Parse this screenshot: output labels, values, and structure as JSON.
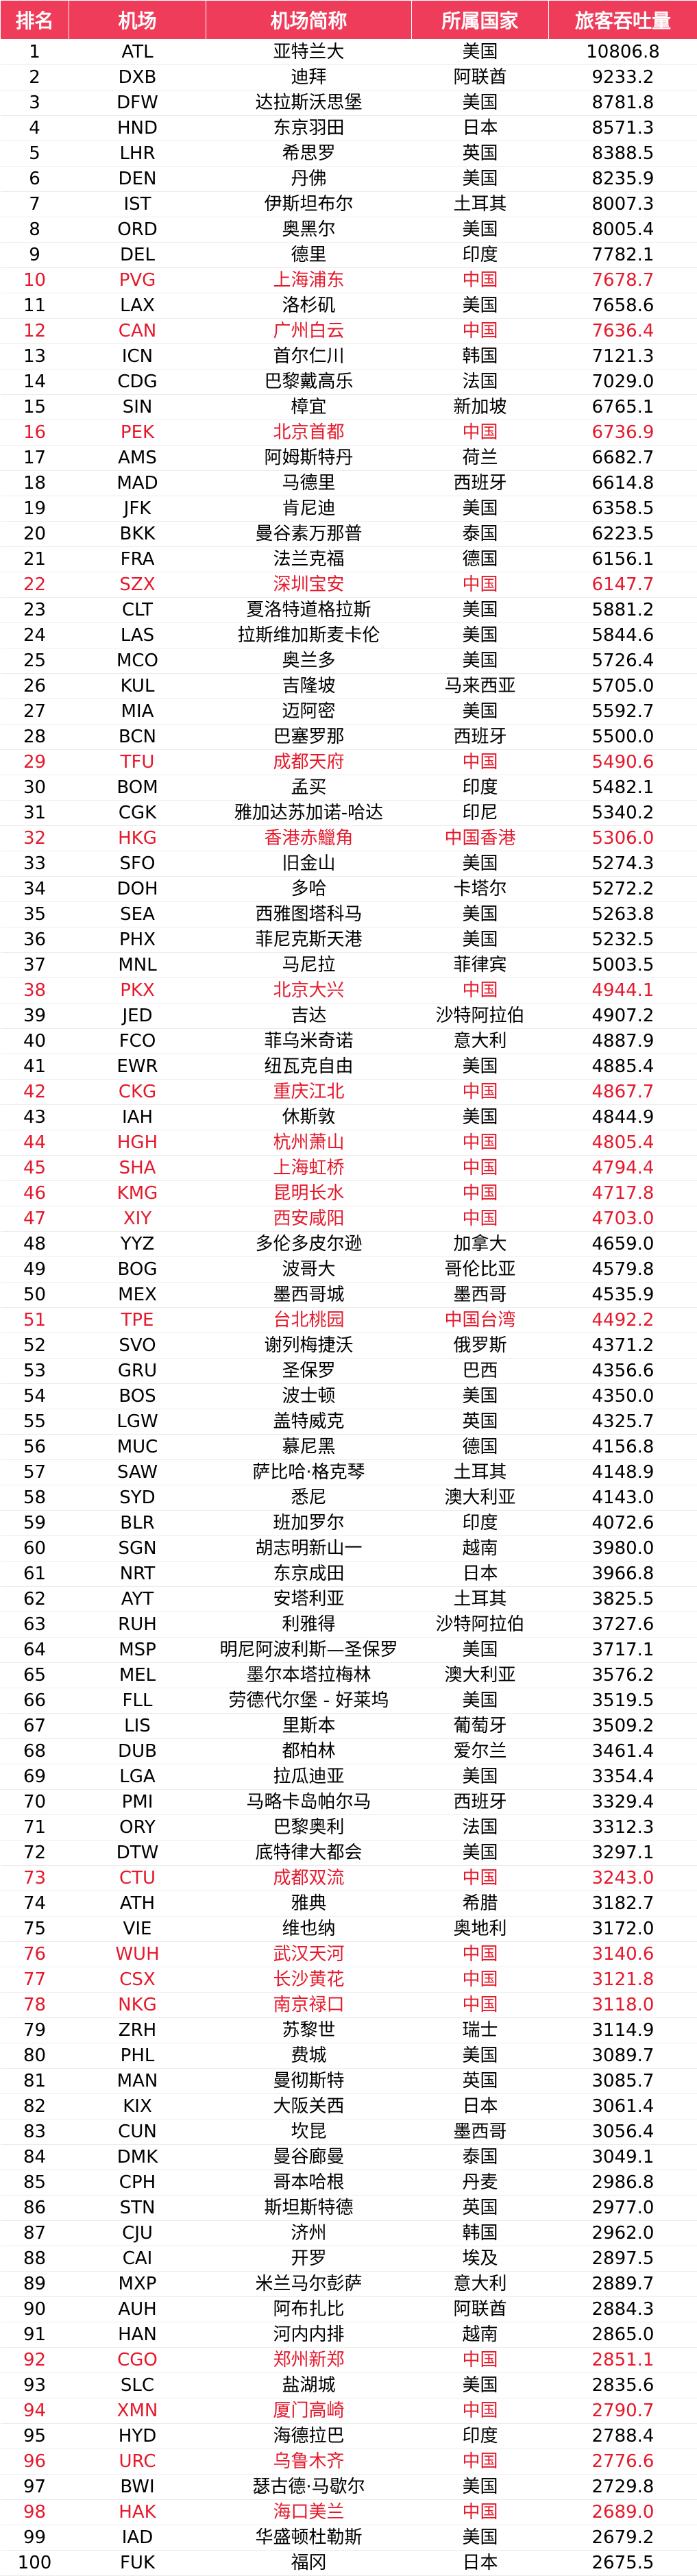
{
  "headers": [
    "排名",
    "机场",
    "机场简称",
    "所属国家",
    "旅客吞吐量"
  ],
  "highlight_color": "#e5192b",
  "header_color": "#ee3c5a",
  "rows": [
    {
      "rank": "1",
      "code": "ATL",
      "name": "亚特兰大",
      "country": "美国",
      "traffic": "10806.8",
      "hl": false
    },
    {
      "rank": "2",
      "code": "DXB",
      "name": "迪拜",
      "country": "阿联酋",
      "traffic": "9233.2",
      "hl": false
    },
    {
      "rank": "3",
      "code": "DFW",
      "name": "达拉斯沃思堡",
      "country": "美国",
      "traffic": "8781.8",
      "hl": false
    },
    {
      "rank": "4",
      "code": "HND",
      "name": "东京羽田",
      "country": "日本",
      "traffic": "8571.3",
      "hl": false
    },
    {
      "rank": "5",
      "code": "LHR",
      "name": "希思罗",
      "country": "英国",
      "traffic": "8388.5",
      "hl": false
    },
    {
      "rank": "6",
      "code": "DEN",
      "name": "丹佛",
      "country": "美国",
      "traffic": "8235.9",
      "hl": false
    },
    {
      "rank": "7",
      "code": "IST",
      "name": "伊斯坦布尔",
      "country": "土耳其",
      "traffic": "8007.3",
      "hl": false
    },
    {
      "rank": "8",
      "code": "ORD",
      "name": "奥黑尔",
      "country": "美国",
      "traffic": "8005.4",
      "hl": false
    },
    {
      "rank": "9",
      "code": "DEL",
      "name": "德里",
      "country": "印度",
      "traffic": "7782.1",
      "hl": false
    },
    {
      "rank": "10",
      "code": "PVG",
      "name": "上海浦东",
      "country": "中国",
      "traffic": "7678.7",
      "hl": true
    },
    {
      "rank": "11",
      "code": "LAX",
      "name": "洛杉矶",
      "country": "美国",
      "traffic": "7658.6",
      "hl": false
    },
    {
      "rank": "12",
      "code": "CAN",
      "name": "广州白云",
      "country": "中国",
      "traffic": "7636.4",
      "hl": true
    },
    {
      "rank": "13",
      "code": "ICN",
      "name": "首尔仁川",
      "country": "韩国",
      "traffic": "7121.3",
      "hl": false
    },
    {
      "rank": "14",
      "code": "CDG",
      "name": "巴黎戴高乐",
      "country": "法国",
      "traffic": "7029.0",
      "hl": false
    },
    {
      "rank": "15",
      "code": "SIN",
      "name": "樟宜",
      "country": "新加坡",
      "traffic": "6765.1",
      "hl": false
    },
    {
      "rank": "16",
      "code": "PEK",
      "name": "北京首都",
      "country": "中国",
      "traffic": "6736.9",
      "hl": true
    },
    {
      "rank": "17",
      "code": "AMS",
      "name": "阿姆斯特丹",
      "country": "荷兰",
      "traffic": "6682.7",
      "hl": false
    },
    {
      "rank": "18",
      "code": "MAD",
      "name": "马德里",
      "country": "西班牙",
      "traffic": "6614.8",
      "hl": false
    },
    {
      "rank": "19",
      "code": "JFK",
      "name": "肯尼迪",
      "country": "美国",
      "traffic": "6358.5",
      "hl": false
    },
    {
      "rank": "20",
      "code": "BKK",
      "name": "曼谷素万那普",
      "country": "泰国",
      "traffic": "6223.5",
      "hl": false
    },
    {
      "rank": "21",
      "code": "FRA",
      "name": "法兰克福",
      "country": "德国",
      "traffic": "6156.1",
      "hl": false
    },
    {
      "rank": "22",
      "code": "SZX",
      "name": "深圳宝安",
      "country": "中国",
      "traffic": "6147.7",
      "hl": true
    },
    {
      "rank": "23",
      "code": "CLT",
      "name": "夏洛特道格拉斯",
      "country": "美国",
      "traffic": "5881.2",
      "hl": false
    },
    {
      "rank": "24",
      "code": "LAS",
      "name": "拉斯维加斯麦卡伦",
      "country": "美国",
      "traffic": "5844.6",
      "hl": false
    },
    {
      "rank": "25",
      "code": "MCO",
      "name": "奥兰多",
      "country": "美国",
      "traffic": "5726.4",
      "hl": false
    },
    {
      "rank": "26",
      "code": "KUL",
      "name": "吉隆坡",
      "country": "马来西亚",
      "traffic": "5705.0",
      "hl": false
    },
    {
      "rank": "27",
      "code": "MIA",
      "name": "迈阿密",
      "country": "美国",
      "traffic": "5592.7",
      "hl": false
    },
    {
      "rank": "28",
      "code": "BCN",
      "name": "巴塞罗那",
      "country": "西班牙",
      "traffic": "5500.0",
      "hl": false
    },
    {
      "rank": "29",
      "code": "TFU",
      "name": "成都天府",
      "country": "中国",
      "traffic": "5490.6",
      "hl": true
    },
    {
      "rank": "30",
      "code": "BOM",
      "name": "孟买",
      "country": "印度",
      "traffic": "5482.1",
      "hl": false
    },
    {
      "rank": "31",
      "code": "CGK",
      "name": "雅加达苏加诺-哈达",
      "country": "印尼",
      "traffic": "5340.2",
      "hl": false
    },
    {
      "rank": "32",
      "code": "HKG",
      "name": "香港赤鱲角",
      "country": "中国香港",
      "traffic": "5306.0",
      "hl": true
    },
    {
      "rank": "33",
      "code": "SFO",
      "name": "旧金山",
      "country": "美国",
      "traffic": "5274.3",
      "hl": false
    },
    {
      "rank": "34",
      "code": "DOH",
      "name": "多哈",
      "country": "卡塔尔",
      "traffic": "5272.2",
      "hl": false
    },
    {
      "rank": "35",
      "code": "SEA",
      "name": "西雅图塔科马",
      "country": "美国",
      "traffic": "5263.8",
      "hl": false
    },
    {
      "rank": "36",
      "code": "PHX",
      "name": "菲尼克斯天港",
      "country": "美国",
      "traffic": "5232.5",
      "hl": false
    },
    {
      "rank": "37",
      "code": "MNL",
      "name": "马尼拉",
      "country": "菲律宾",
      "traffic": "5003.5",
      "hl": false
    },
    {
      "rank": "38",
      "code": "PKX",
      "name": "北京大兴",
      "country": "中国",
      "traffic": "4944.1",
      "hl": true
    },
    {
      "rank": "39",
      "code": "JED",
      "name": "吉达",
      "country": "沙特阿拉伯",
      "traffic": "4907.2",
      "hl": false
    },
    {
      "rank": "40",
      "code": "FCO",
      "name": "菲乌米奇诺",
      "country": "意大利",
      "traffic": "4887.9",
      "hl": false
    },
    {
      "rank": "41",
      "code": "EWR",
      "name": "纽瓦克自由",
      "country": "美国",
      "traffic": "4885.4",
      "hl": false
    },
    {
      "rank": "42",
      "code": "CKG",
      "name": "重庆江北",
      "country": "中国",
      "traffic": "4867.7",
      "hl": true
    },
    {
      "rank": "43",
      "code": "IAH",
      "name": "休斯敦",
      "country": "美国",
      "traffic": "4844.9",
      "hl": false
    },
    {
      "rank": "44",
      "code": "HGH",
      "name": "杭州萧山",
      "country": "中国",
      "traffic": "4805.4",
      "hl": true
    },
    {
      "rank": "45",
      "code": "SHA",
      "name": "上海虹桥",
      "country": "中国",
      "traffic": "4794.4",
      "hl": true
    },
    {
      "rank": "46",
      "code": "KMG",
      "name": "昆明长水",
      "country": "中国",
      "traffic": "4717.8",
      "hl": true
    },
    {
      "rank": "47",
      "code": "XIY",
      "name": "西安咸阳",
      "country": "中国",
      "traffic": "4703.0",
      "hl": true
    },
    {
      "rank": "48",
      "code": "YYZ",
      "name": "多伦多皮尔逊",
      "country": "加拿大",
      "traffic": "4659.0",
      "hl": false
    },
    {
      "rank": "49",
      "code": "BOG",
      "name": "波哥大",
      "country": "哥伦比亚",
      "traffic": "4579.8",
      "hl": false
    },
    {
      "rank": "50",
      "code": "MEX",
      "name": "墨西哥城",
      "country": "墨西哥",
      "traffic": "4535.9",
      "hl": false
    },
    {
      "rank": "51",
      "code": "TPE",
      "name": "台北桃园",
      "country": "中国台湾",
      "traffic": "4492.2",
      "hl": true
    },
    {
      "rank": "52",
      "code": "SVO",
      "name": "谢列梅捷沃",
      "country": "俄罗斯",
      "traffic": "4371.2",
      "hl": false
    },
    {
      "rank": "53",
      "code": "GRU",
      "name": "圣保罗",
      "country": "巴西",
      "traffic": "4356.6",
      "hl": false
    },
    {
      "rank": "54",
      "code": "BOS",
      "name": "波士顿",
      "country": "美国",
      "traffic": "4350.0",
      "hl": false
    },
    {
      "rank": "55",
      "code": "LGW",
      "name": "盖特威克",
      "country": "英国",
      "traffic": "4325.7",
      "hl": false
    },
    {
      "rank": "56",
      "code": "MUC",
      "name": "慕尼黑",
      "country": "德国",
      "traffic": "4156.8",
      "hl": false
    },
    {
      "rank": "57",
      "code": "SAW",
      "name": "萨比哈·格克琴",
      "country": "土耳其",
      "traffic": "4148.9",
      "hl": false
    },
    {
      "rank": "58",
      "code": "SYD",
      "name": "悉尼",
      "country": "澳大利亚",
      "traffic": "4143.0",
      "hl": false
    },
    {
      "rank": "59",
      "code": "BLR",
      "name": "班加罗尔",
      "country": "印度",
      "traffic": "4072.6",
      "hl": false
    },
    {
      "rank": "60",
      "code": "SGN",
      "name": "胡志明新山一",
      "country": "越南",
      "traffic": "3980.0",
      "hl": false
    },
    {
      "rank": "61",
      "code": "NRT",
      "name": "东京成田",
      "country": "日本",
      "traffic": "3966.8",
      "hl": false
    },
    {
      "rank": "62",
      "code": "AYT",
      "name": "安塔利亚",
      "country": "土耳其",
      "traffic": "3825.5",
      "hl": false
    },
    {
      "rank": "63",
      "code": "RUH",
      "name": "利雅得",
      "country": "沙特阿拉伯",
      "traffic": "3727.6",
      "hl": false
    },
    {
      "rank": "64",
      "code": "MSP",
      "name": "明尼阿波利斯—圣保罗",
      "country": "美国",
      "traffic": "3717.1",
      "hl": false
    },
    {
      "rank": "65",
      "code": "MEL",
      "name": "墨尔本塔拉梅林",
      "country": "澳大利亚",
      "traffic": "3576.2",
      "hl": false
    },
    {
      "rank": "66",
      "code": "FLL",
      "name": "劳德代尔堡 - 好莱坞",
      "country": "美国",
      "traffic": "3519.5",
      "hl": false
    },
    {
      "rank": "67",
      "code": "LIS",
      "name": "里斯本",
      "country": "葡萄牙",
      "traffic": "3509.2",
      "hl": false
    },
    {
      "rank": "68",
      "code": "DUB",
      "name": "都柏林",
      "country": "爱尔兰",
      "traffic": "3461.4",
      "hl": false
    },
    {
      "rank": "69",
      "code": "LGA",
      "name": "拉瓜迪亚",
      "country": "美国",
      "traffic": "3354.4",
      "hl": false
    },
    {
      "rank": "70",
      "code": "PMI",
      "name": "马略卡岛帕尔马",
      "country": "西班牙",
      "traffic": "3329.4",
      "hl": false
    },
    {
      "rank": "71",
      "code": "ORY",
      "name": "巴黎奥利",
      "country": "法国",
      "traffic": "3312.3",
      "hl": false
    },
    {
      "rank": "72",
      "code": "DTW",
      "name": "底特律大都会",
      "country": "美国",
      "traffic": "3297.1",
      "hl": false
    },
    {
      "rank": "73",
      "code": "CTU",
      "name": "成都双流",
      "country": "中国",
      "traffic": "3243.0",
      "hl": true
    },
    {
      "rank": "74",
      "code": "ATH",
      "name": "雅典",
      "country": "希腊",
      "traffic": "3182.7",
      "hl": false
    },
    {
      "rank": "75",
      "code": "VIE",
      "name": "维也纳",
      "country": "奥地利",
      "traffic": "3172.0",
      "hl": false
    },
    {
      "rank": "76",
      "code": "WUH",
      "name": "武汉天河",
      "country": "中国",
      "traffic": "3140.6",
      "hl": true
    },
    {
      "rank": "77",
      "code": "CSX",
      "name": "长沙黄花",
      "country": "中国",
      "traffic": "3121.8",
      "hl": true
    },
    {
      "rank": "78",
      "code": "NKG",
      "name": "南京禄口",
      "country": "中国",
      "traffic": "3118.0",
      "hl": true
    },
    {
      "rank": "79",
      "code": "ZRH",
      "name": "苏黎世",
      "country": "瑞士",
      "traffic": "3114.9",
      "hl": false
    },
    {
      "rank": "80",
      "code": "PHL",
      "name": "费城",
      "country": "美国",
      "traffic": "3089.7",
      "hl": false
    },
    {
      "rank": "81",
      "code": "MAN",
      "name": "曼彻斯特",
      "country": "英国",
      "traffic": "3085.7",
      "hl": false
    },
    {
      "rank": "82",
      "code": "KIX",
      "name": "大阪关西",
      "country": "日本",
      "traffic": "3061.4",
      "hl": false
    },
    {
      "rank": "83",
      "code": "CUN",
      "name": "坎昆",
      "country": "墨西哥",
      "traffic": "3056.4",
      "hl": false
    },
    {
      "rank": "84",
      "code": "DMK",
      "name": "曼谷廊曼",
      "country": "泰国",
      "traffic": "3049.1",
      "hl": false
    },
    {
      "rank": "85",
      "code": "CPH",
      "name": "哥本哈根",
      "country": "丹麦",
      "traffic": "2986.8",
      "hl": false
    },
    {
      "rank": "86",
      "code": "STN",
      "name": "斯坦斯特德",
      "country": "英国",
      "traffic": "2977.0",
      "hl": false
    },
    {
      "rank": "87",
      "code": "CJU",
      "name": "济州",
      "country": "韩国",
      "traffic": "2962.0",
      "hl": false
    },
    {
      "rank": "88",
      "code": "CAI",
      "name": "开罗",
      "country": "埃及",
      "traffic": "2897.5",
      "hl": false
    },
    {
      "rank": "89",
      "code": "MXP",
      "name": "米兰马尔彭萨",
      "country": "意大利",
      "traffic": "2889.7",
      "hl": false
    },
    {
      "rank": "90",
      "code": "AUH",
      "name": "阿布扎比",
      "country": "阿联酋",
      "traffic": "2884.3",
      "hl": false
    },
    {
      "rank": "91",
      "code": "HAN",
      "name": "河内内排",
      "country": "越南",
      "traffic": "2865.0",
      "hl": false
    },
    {
      "rank": "92",
      "code": "CGO",
      "name": "郑州新郑",
      "country": "中国",
      "traffic": "2851.1",
      "hl": true
    },
    {
      "rank": "93",
      "code": "SLC",
      "name": "盐湖城",
      "country": "美国",
      "traffic": "2835.6",
      "hl": false
    },
    {
      "rank": "94",
      "code": "XMN",
      "name": "厦门高崎",
      "country": "中国",
      "traffic": "2790.7",
      "hl": true
    },
    {
      "rank": "95",
      "code": "HYD",
      "name": "海德拉巴",
      "country": "印度",
      "traffic": "2788.4",
      "hl": false
    },
    {
      "rank": "96",
      "code": "URC",
      "name": "乌鲁木齐",
      "country": "中国",
      "traffic": "2776.6",
      "hl": true
    },
    {
      "rank": "97",
      "code": "BWI",
      "name": "瑟古德·马歇尔",
      "country": "美国",
      "traffic": "2729.8",
      "hl": false
    },
    {
      "rank": "98",
      "code": "HAK",
      "name": "海口美兰",
      "country": "中国",
      "traffic": "2689.0",
      "hl": true
    },
    {
      "rank": "99",
      "code": "IAD",
      "name": "华盛顿杜勒斯",
      "country": "美国",
      "traffic": "2679.2",
      "hl": false
    },
    {
      "rank": "100",
      "code": "FUK",
      "name": "福冈",
      "country": "日本",
      "traffic": "2675.5",
      "hl": false
    }
  ]
}
